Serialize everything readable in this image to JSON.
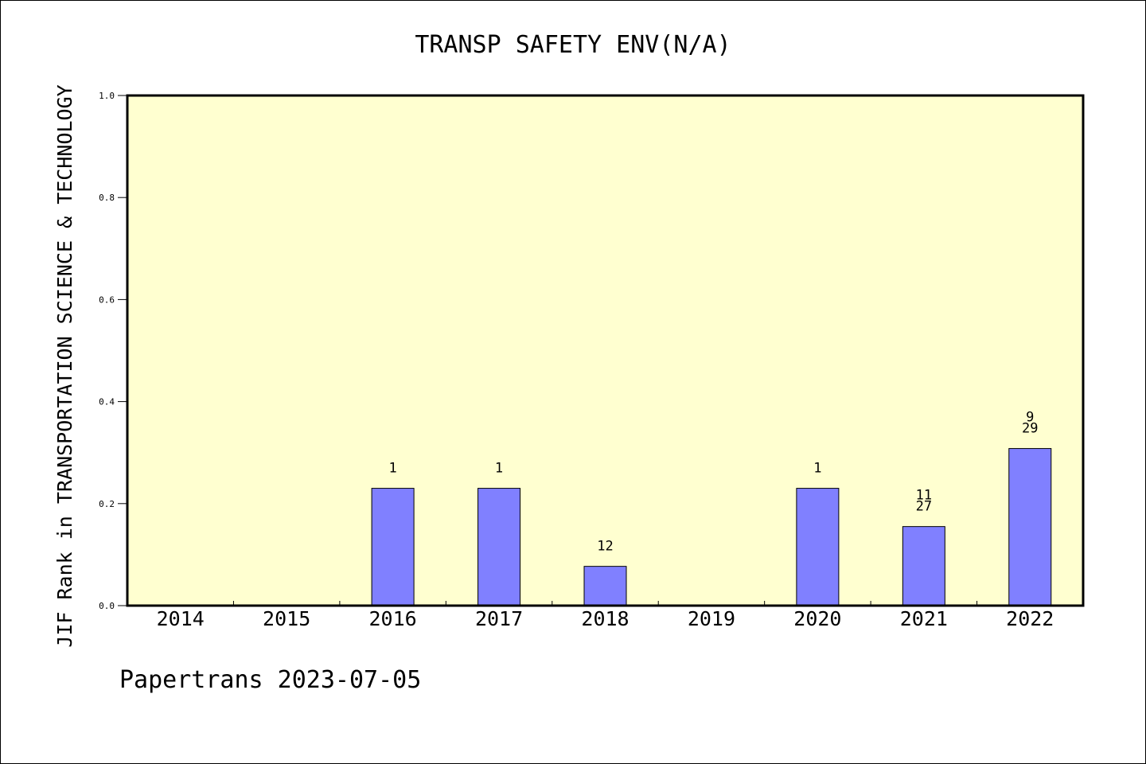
{
  "chart_data": {
    "type": "bar",
    "title": "TRANSP SAFETY ENV(N/A)",
    "ylabel": "JIF Rank in TRANSPORTATION SCIENCE & TECHNOLOGY",
    "xlabel": "",
    "categories": [
      "2014",
      "2015",
      "2016",
      "2017",
      "2018",
      "2019",
      "2020",
      "2021",
      "2022"
    ],
    "values": [
      0,
      0,
      0.23,
      0.23,
      0.077,
      0,
      0.23,
      0.155,
      0.308
    ],
    "bar_labels": [
      [],
      [],
      [
        "1"
      ],
      [
        "1"
      ],
      [
        "12"
      ],
      [],
      [
        "1"
      ],
      [
        "11",
        "27"
      ],
      [
        "9",
        "29"
      ]
    ],
    "ylim": [
      0,
      1.0
    ],
    "yticks": [
      "0.0",
      "0.2",
      "0.4",
      "0.6",
      "0.8",
      "1.0"
    ],
    "grid": false,
    "colors": {
      "plot_background": "#ffffd0",
      "bar_fill": "#8080ff",
      "bar_stroke": "#000000",
      "axis": "#000000"
    }
  },
  "footer": {
    "credit": "Papertrans 2023-07-05"
  }
}
